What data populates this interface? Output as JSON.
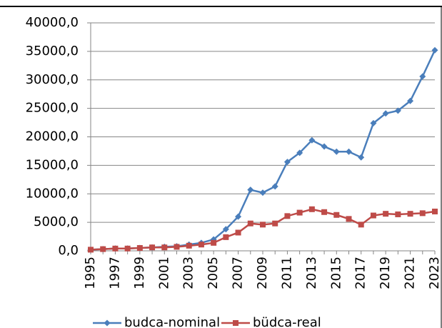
{
  "chart_data": {
    "type": "line",
    "categories": [
      "1995",
      null,
      "1997",
      null,
      "1999",
      null,
      "2001",
      null,
      "2003",
      null,
      "2005",
      null,
      "2007",
      null,
      "2009",
      null,
      "2011",
      null,
      "2013",
      null,
      "2015",
      null,
      "2017",
      null,
      "2019",
      null,
      "2021",
      null,
      "2023"
    ],
    "series": [
      {
        "name": "budca-nominal",
        "color": "#4a7ebb",
        "marker": "diamond",
        "values": [
          200,
          300,
          400,
          400,
          500,
          600,
          700,
          800,
          1100,
          1400,
          2000,
          3800,
          6000,
          10700,
          10200,
          11300,
          15600,
          17200,
          19400,
          18300,
          17400,
          17400,
          16400,
          22400,
          24100,
          24600,
          26300,
          30600,
          35200
        ]
      },
      {
        "name": "büdca-real",
        "color": "#be4b48",
        "marker": "square",
        "values": [
          200,
          300,
          400,
          400,
          500,
          600,
          600,
          700,
          900,
          1100,
          1400,
          2400,
          3200,
          4800,
          4600,
          4800,
          6100,
          6700,
          7300,
          6800,
          6300,
          5600,
          4600,
          6200,
          6500,
          6400,
          6500,
          6600,
          6900
        ]
      }
    ],
    "ylim": [
      0,
      40000
    ],
    "yticks": [
      {
        "value": 0,
        "label": "0,0"
      },
      {
        "value": 5000,
        "label": "5000,0"
      },
      {
        "value": 10000,
        "label": "10000,0"
      },
      {
        "value": 15000,
        "label": "15000,0"
      },
      {
        "value": 20000,
        "label": "20000,0"
      },
      {
        "value": 25000,
        "label": "25000,0"
      },
      {
        "value": 30000,
        "label": "30000,0"
      },
      {
        "value": 35000,
        "label": "35000,0"
      },
      {
        "value": 40000,
        "label": "40000,0"
      }
    ],
    "grid": true,
    "legend": "bottom"
  }
}
